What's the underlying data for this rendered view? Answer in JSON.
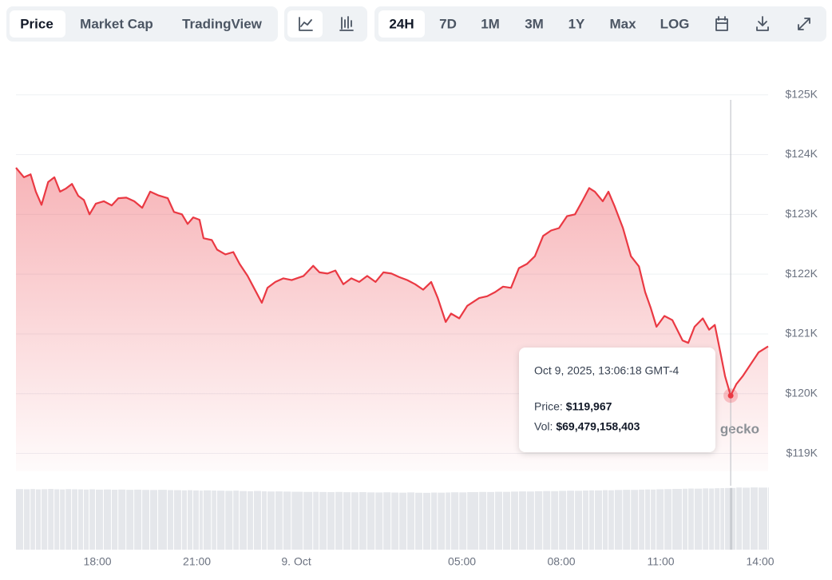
{
  "toolbar": {
    "views": [
      {
        "label": "Price",
        "active": true
      },
      {
        "label": "Market Cap",
        "active": false
      },
      {
        "label": "TradingView",
        "active": false
      }
    ],
    "ranges": [
      {
        "label": "24H",
        "active": true
      },
      {
        "label": "7D",
        "active": false
      },
      {
        "label": "1M",
        "active": false
      },
      {
        "label": "3M",
        "active": false
      },
      {
        "label": "1Y",
        "active": false
      },
      {
        "label": "Max",
        "active": false
      },
      {
        "label": "LOG",
        "active": false
      }
    ]
  },
  "chart_data": {
    "type": "line",
    "watermark": "gecko",
    "xlim": [
      -8.46,
      14.24
    ],
    "xticks": [
      {
        "value": -6,
        "label": "18:00"
      },
      {
        "value": -3,
        "label": "21:00"
      },
      {
        "value": 0,
        "label": "9. Oct"
      },
      {
        "value": 5,
        "label": "05:00"
      },
      {
        "value": 8,
        "label": "08:00"
      },
      {
        "value": 11,
        "label": "11:00"
      },
      {
        "value": 14,
        "label": "14:00"
      }
    ],
    "ylim": [
      118700,
      125250
    ],
    "yticks": [
      {
        "value": 119000,
        "label": "$119K"
      },
      {
        "value": 120000,
        "label": "$120K"
      },
      {
        "value": 121000,
        "label": "$121K"
      },
      {
        "value": 122000,
        "label": "$122K"
      },
      {
        "value": 123000,
        "label": "$123K"
      },
      {
        "value": 124000,
        "label": "$124K"
      },
      {
        "value": 125000,
        "label": "$125K"
      }
    ],
    "y2lim": [
      0,
      72000000000
    ],
    "grid": true,
    "x": [
      -8.46,
      -8.22,
      -8.02,
      -7.86,
      -7.69,
      -7.49,
      -7.3,
      -7.13,
      -6.96,
      -6.77,
      -6.58,
      -6.41,
      -6.24,
      -6.05,
      -5.81,
      -5.57,
      -5.37,
      -5.13,
      -4.89,
      -4.65,
      -4.41,
      -4.17,
      -3.88,
      -3.69,
      -3.45,
      -3.28,
      -3.11,
      -2.92,
      -2.8,
      -2.55,
      -2.39,
      -2.14,
      -1.9,
      -1.71,
      -1.47,
      -1.28,
      -1.04,
      -0.87,
      -0.63,
      -0.39,
      -0.14,
      0.22,
      0.51,
      0.7,
      0.94,
      1.18,
      1.42,
      1.66,
      1.9,
      2.14,
      2.39,
      2.63,
      2.87,
      3.11,
      3.35,
      3.59,
      3.83,
      4.07,
      4.27,
      4.51,
      4.67,
      4.92,
      5.16,
      5.52,
      5.76,
      6.0,
      6.24,
      6.48,
      6.72,
      6.96,
      7.2,
      7.45,
      7.69,
      7.93,
      8.17,
      8.41,
      8.65,
      8.84,
      9.01,
      9.25,
      9.42,
      9.61,
      9.86,
      10.1,
      10.34,
      10.53,
      10.7,
      10.87,
      11.11,
      11.35,
      11.66,
      11.83,
      12.02,
      12.27,
      12.46,
      12.63,
      12.8,
      12.94,
      13.11,
      13.28,
      13.47,
      13.71,
      13.95,
      14.24
    ],
    "series": [
      {
        "name": "Price",
        "color": "#ea3943",
        "values": [
          123780,
          123620,
          123670,
          123380,
          123160,
          123540,
          123620,
          123380,
          123430,
          123510,
          123310,
          123240,
          123000,
          123180,
          123220,
          123150,
          123270,
          123280,
          123220,
          123110,
          123380,
          123320,
          123270,
          123040,
          123000,
          122840,
          122950,
          122910,
          122600,
          122570,
          122410,
          122330,
          122370,
          122170,
          121970,
          121770,
          121520,
          121770,
          121870,
          121930,
          121900,
          121970,
          122140,
          122030,
          122010,
          122060,
          121830,
          121930,
          121870,
          121970,
          121870,
          122030,
          122010,
          121950,
          121900,
          121830,
          121740,
          121870,
          121600,
          121200,
          121340,
          121260,
          121470,
          121600,
          121630,
          121700,
          121790,
          121770,
          122100,
          122170,
          122300,
          122640,
          122730,
          122770,
          122970,
          123000,
          123240,
          123440,
          123380,
          123220,
          123380,
          123130,
          122770,
          122300,
          122130,
          121700,
          121430,
          121120,
          121300,
          121230,
          120890,
          120850,
          121120,
          121260,
          121070,
          121150,
          120690,
          120290,
          119967,
          120160,
          120290,
          120490,
          120690,
          120790
        ]
      },
      {
        "name": "Vol",
        "color": "#e5e7eb",
        "axis": "y2",
        "values": [
          68200000000,
          68000000000,
          68300000000,
          67900000000,
          68100000000,
          68400000000,
          68000000000,
          67800000000,
          68200000000,
          68000000000,
          67900000000,
          67700000000,
          68000000000,
          67600000000,
          67800000000,
          67500000000,
          67700000000,
          67400000000,
          67600000000,
          67300000000,
          67200000000,
          67400000000,
          67100000000,
          67000000000,
          66800000000,
          67000000000,
          66700000000,
          66500000000,
          66800000000,
          66600000000,
          66400000000,
          66200000000,
          66500000000,
          66000000000,
          65800000000,
          66100000000,
          65700000000,
          65500000000,
          65600000000,
          65400000000,
          65200000000,
          65000000000,
          65100000000,
          64900000000,
          64800000000,
          65000000000,
          64700000000,
          64600000000,
          64800000000,
          64500000000,
          64400000000,
          64600000000,
          64300000000,
          64200000000,
          64500000000,
          64100000000,
          64000000000,
          64300000000,
          64200000000,
          64400000000,
          64600000000,
          64500000000,
          64800000000,
          65000000000,
          64900000000,
          65200000000,
          65100000000,
          65400000000,
          65600000000,
          65500000000,
          65800000000,
          66000000000,
          65900000000,
          66200000000,
          66400000000,
          66300000000,
          66600000000,
          66800000000,
          66700000000,
          67000000000,
          66900000000,
          67200000000,
          67400000000,
          67300000000,
          67600000000,
          67800000000,
          67700000000,
          68000000000,
          68200000000,
          68400000000,
          68600000000,
          68800000000,
          68700000000,
          69000000000,
          68900000000,
          69200000000,
          69300000000,
          69400000000,
          69479158403,
          70000000000,
          69800000000,
          70100000000,
          69900000000,
          70000000000
        ]
      }
    ],
    "tooltip": {
      "time": "Oct 9, 2025, 13:06:18 GMT-4",
      "fields": [
        {
          "name": "Price:",
          "value": 119967,
          "value_label": "$119,967"
        },
        {
          "name": "Vol:",
          "value": 69479158403,
          "value_label": "$69,479,158,403"
        }
      ]
    }
  }
}
